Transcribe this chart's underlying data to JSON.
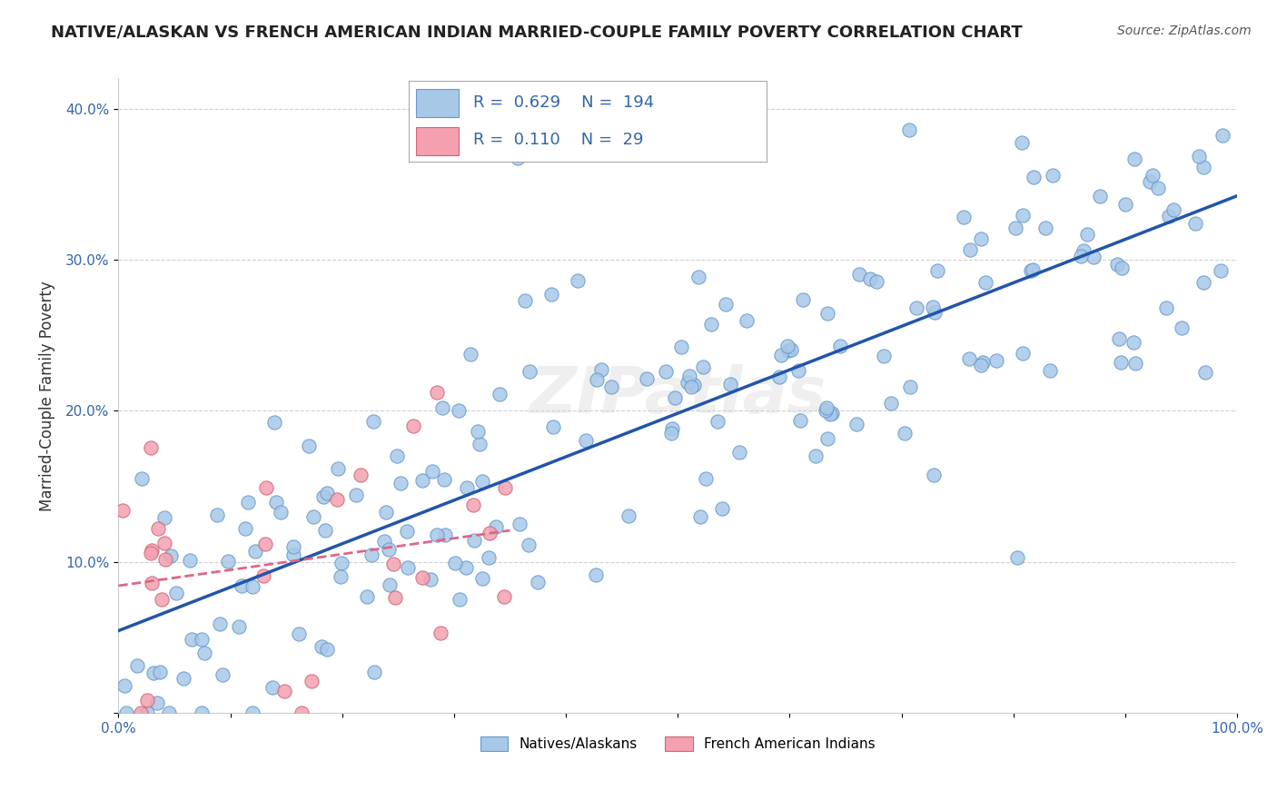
{
  "title": "NATIVE/ALASKAN VS FRENCH AMERICAN INDIAN MARRIED-COUPLE FAMILY POVERTY CORRELATION CHART",
  "source": "Source: ZipAtlas.com",
  "ylabel": "Married-Couple Family Poverty",
  "xlabel": "",
  "xlim": [
    0,
    1.0
  ],
  "ylim": [
    0,
    0.42
  ],
  "xticks": [
    0.0,
    0.1,
    0.2,
    0.3,
    0.4,
    0.5,
    0.6,
    0.7,
    0.8,
    0.9,
    1.0
  ],
  "xticklabels": [
    "0.0%",
    "",
    "",
    "",
    "",
    "",
    "",
    "",
    "",
    "",
    "100.0%"
  ],
  "yticks": [
    0.0,
    0.1,
    0.2,
    0.3,
    0.4
  ],
  "yticklabels": [
    "",
    "10.0%",
    "20.0%",
    "30.0%",
    "40.0%"
  ],
  "blue_color": "#a8c8e8",
  "blue_edge": "#6699cc",
  "pink_color": "#f4a0b0",
  "pink_edge": "#cc6677",
  "blue_line_color": "#2255aa",
  "pink_line_color": "#dd6688",
  "watermark": "ZIPatlas",
  "legend_R1": "0.629",
  "legend_N1": "194",
  "legend_R2": "0.110",
  "legend_N2": "29",
  "label1": "Natives/Alaskans",
  "label2": "French American Indians",
  "blue_R": 0.629,
  "blue_N": 194,
  "pink_R": 0.11,
  "pink_N": 29,
  "seed": 42
}
